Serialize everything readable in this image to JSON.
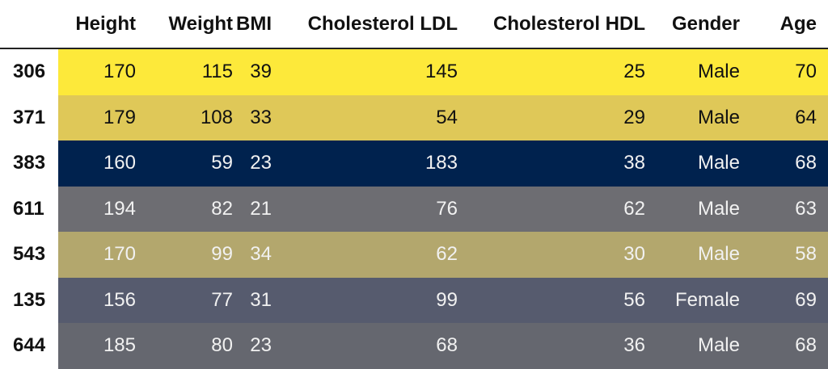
{
  "table": {
    "columns": [
      "Height",
      "Weight",
      "BMI",
      "Cholesterol LDL",
      "Cholesterol HDL",
      "Gender",
      "Age"
    ],
    "rows": [
      {
        "index": "306",
        "cells": [
          "170",
          "115",
          "39",
          "145",
          "25",
          "Male",
          "70"
        ],
        "bg": "#fde93a",
        "fg": "#111111"
      },
      {
        "index": "371",
        "cells": [
          "179",
          "108",
          "33",
          "54",
          "29",
          "Male",
          "64"
        ],
        "bg": "#dfc858",
        "fg": "#111111"
      },
      {
        "index": "383",
        "cells": [
          "160",
          "59",
          "23",
          "183",
          "38",
          "Male",
          "68"
        ],
        "bg": "#00224e",
        "fg": "#f1f1f1"
      },
      {
        "index": "611",
        "cells": [
          "194",
          "82",
          "21",
          "76",
          "62",
          "Male",
          "63"
        ],
        "bg": "#6d6d72",
        "fg": "#f1f1f1"
      },
      {
        "index": "543",
        "cells": [
          "170",
          "99",
          "34",
          "62",
          "30",
          "Male",
          "58"
        ],
        "bg": "#b3a76d",
        "fg": "#f1f1f1"
      },
      {
        "index": "135",
        "cells": [
          "156",
          "77",
          "31",
          "99",
          "56",
          "Female",
          "69"
        ],
        "bg": "#565b6e",
        "fg": "#f1f1f1"
      },
      {
        "index": "644",
        "cells": [
          "185",
          "80",
          "23",
          "68",
          "36",
          "Male",
          "68"
        ],
        "bg": "#65676f",
        "fg": "#f1f1f1"
      }
    ]
  }
}
